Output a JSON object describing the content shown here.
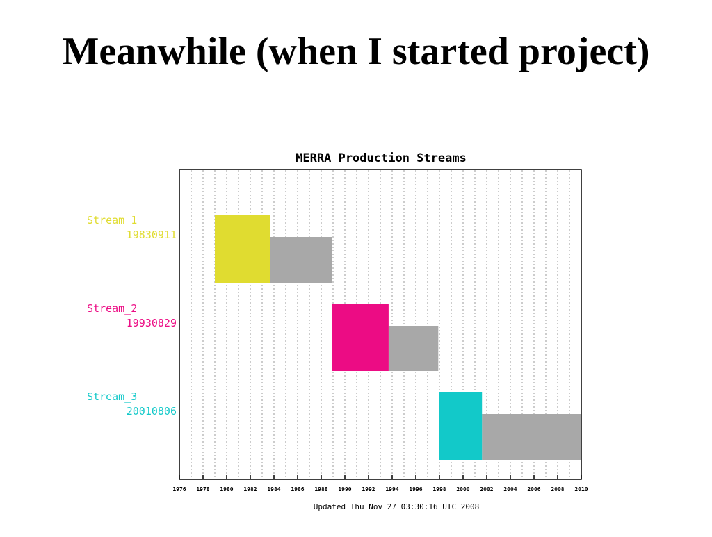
{
  "slide": {
    "title": "Meanwhile (when I started project)"
  },
  "chart_data": {
    "type": "bar",
    "subtype": "gantt",
    "title": "MERRA Production Streams",
    "footer": "Updated Thu Nov 27 03:30:16 UTC 2008",
    "xlim": [
      1976,
      2010
    ],
    "x_ticks": [
      1976,
      1978,
      1980,
      1982,
      1984,
      1986,
      1988,
      1990,
      1992,
      1994,
      1996,
      1998,
      2000,
      2002,
      2004,
      2006,
      2008,
      2010
    ],
    "grid": true,
    "series": [
      {
        "name": "Stream_1",
        "date": "19830911",
        "color": "#e0dc30",
        "completed": {
          "start": 1979,
          "end": 1983.7
        },
        "remaining": {
          "start": 1983.7,
          "end": 1988.9
        }
      },
      {
        "name": "Stream_2",
        "date": "19930829",
        "color": "#ec0c84",
        "completed": {
          "start": 1988.9,
          "end": 1993.7
        },
        "remaining": {
          "start": 1993.7,
          "end": 1997.9
        }
      },
      {
        "name": "Stream_3",
        "date": "20010806",
        "color": "#12c9c9",
        "completed": {
          "start": 1998.0,
          "end": 2001.6
        },
        "remaining": {
          "start": 2001.6,
          "end": 2010
        }
      }
    ],
    "remaining_color": "#a8a8a8"
  }
}
